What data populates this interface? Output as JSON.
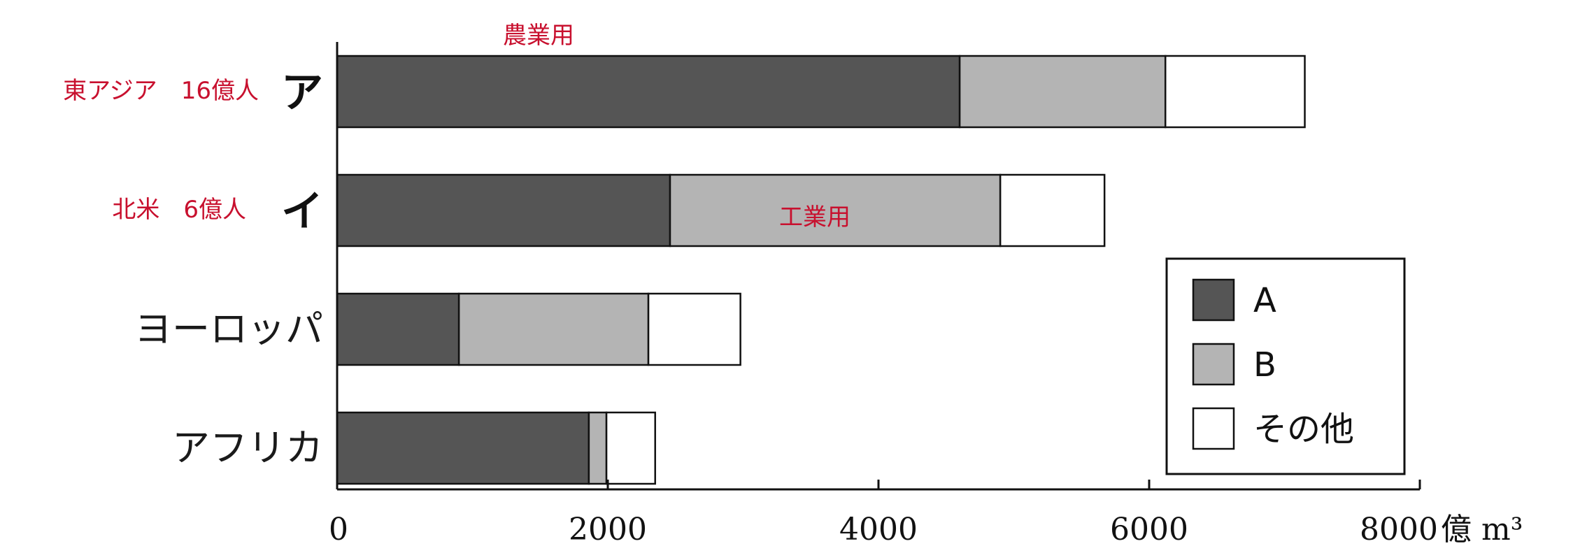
{
  "chart_data": {
    "type": "bar",
    "orientation": "horizontal",
    "stacked": true,
    "categories": [
      "ア",
      "イ",
      "ヨーロッパ",
      "アフリカ"
    ],
    "series": [
      {
        "name": "A",
        "values": [
          4600,
          2460,
          900,
          1860
        ]
      },
      {
        "name": "B",
        "values": [
          1520,
          2440,
          1400,
          130
        ]
      },
      {
        "name": "その他",
        "values": [
          1030,
          770,
          680,
          360
        ]
      }
    ],
    "xlim": [
      0,
      8000
    ],
    "xticks": [
      "0",
      "2000",
      "4000",
      "6000",
      "8000"
    ],
    "x_unit": "億 m³",
    "legend_position": "right",
    "colors": {
      "A": "#555555",
      "B": "#b4b4b4",
      "その他": "#ffffff"
    },
    "annotations": {
      "top_note": "農業用",
      "row_notes": [
        "東アジア　16億人",
        "北米　6億人",
        "",
        ""
      ],
      "bar_note": {
        "text": "工業用",
        "row": 1
      }
    }
  }
}
